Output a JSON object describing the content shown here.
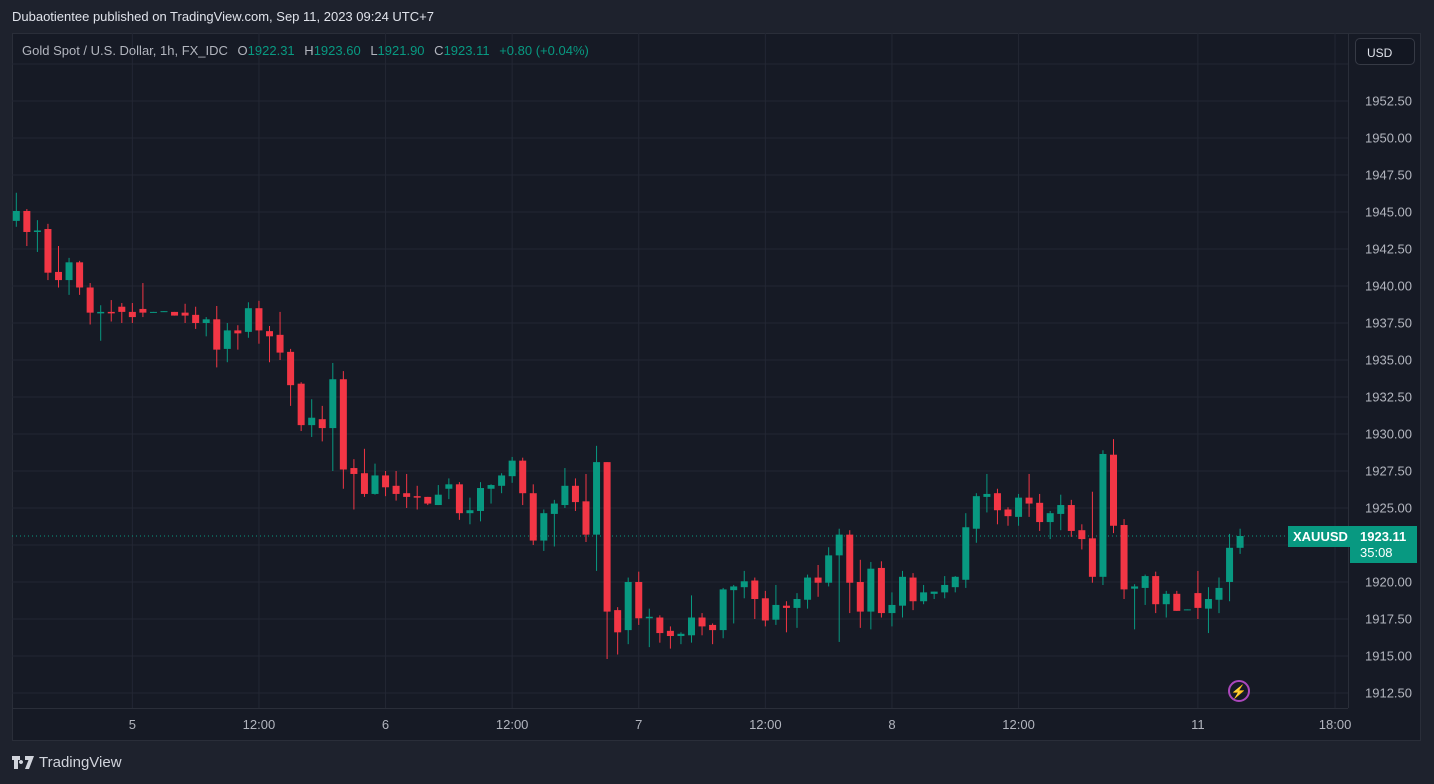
{
  "published": "Dubaotientee published on TradingView.com, Sep 11, 2023 09:24 UTC+7",
  "legend": {
    "symbol": "Gold Spot / U.S. Dollar, 1h, FX_IDC",
    "o_label": "O",
    "o": "1922.31",
    "h_label": "H",
    "h": "1923.60",
    "l_label": "L",
    "l": "1921.90",
    "c_label": "C",
    "c": "1923.11",
    "change": "+0.80 (+0.04%)"
  },
  "currency_button": "USD",
  "last_price": {
    "symbol": "XAUUSD",
    "price": "1923.11",
    "countdown": "35:08"
  },
  "footer": {
    "brand": "TradingView"
  },
  "colors": {
    "up": "#089981",
    "down": "#f23645",
    "grid": "#232734",
    "alert": "#ab47bc"
  },
  "icons": {
    "alert": "lightning-icon",
    "logo": "tradingview-logo"
  },
  "chart_data": {
    "type": "candlestick",
    "title": "Gold Spot / U.S. Dollar, 1h, FX_IDC",
    "ylabel": "USD",
    "ylim": [
      1910.2,
      1957.8
    ],
    "grid": true,
    "last_price": 1923.11,
    "y_ticks": [
      "1912.50",
      "1915.00",
      "1917.50",
      "1920.00",
      "1922.50",
      "1925.00",
      "1927.50",
      "1930.00",
      "1932.50",
      "1935.00",
      "1937.50",
      "1940.00",
      "1942.50",
      "1945.00",
      "1947.50",
      "1950.00",
      "1952.50"
    ],
    "x_ticks": [
      {
        "label": "5",
        "index": 11
      },
      {
        "label": "12:00",
        "index": 23
      },
      {
        "label": "6",
        "index": 35
      },
      {
        "label": "12:00",
        "index": 47
      },
      {
        "label": "7",
        "index": 59
      },
      {
        "label": "12:00",
        "index": 71
      },
      {
        "label": "8",
        "index": 83
      },
      {
        "label": "12:00",
        "index": 95
      },
      {
        "label": "11",
        "index": 112
      },
      {
        "label": "18:00",
        "index": 125
      }
    ],
    "ohlc_fields": [
      "open",
      "high",
      "low",
      "close"
    ],
    "candles": [
      [
        1944.4,
        1946.3,
        1944.0,
        1945.07
      ],
      [
        1945.07,
        1945.2,
        1942.7,
        1943.65
      ],
      [
        1943.65,
        1944.45,
        1942.3,
        1943.75
      ],
      [
        1943.85,
        1944.2,
        1940.4,
        1940.9
      ],
      [
        1940.95,
        1942.7,
        1939.9,
        1940.4
      ],
      [
        1940.4,
        1941.9,
        1939.4,
        1941.6
      ],
      [
        1941.6,
        1941.7,
        1939.4,
        1939.9
      ],
      [
        1939.9,
        1940.2,
        1937.4,
        1938.2
      ],
      [
        1938.15,
        1938.7,
        1936.3,
        1938.25
      ],
      [
        1938.25,
        1939.05,
        1937.6,
        1938.15
      ],
      [
        1938.6,
        1938.85,
        1937.5,
        1938.25
      ],
      [
        1938.25,
        1938.85,
        1937.5,
        1937.9
      ],
      [
        1938.45,
        1940.2,
        1937.9,
        1938.2
      ],
      [
        1938.2,
        1938.25,
        1938.2,
        1938.25
      ],
      [
        1938.25,
        1938.3,
        1938.25,
        1938.3
      ],
      [
        1938.25,
        1938.25,
        1938.0,
        1938.0
      ],
      [
        1938.2,
        1938.8,
        1937.5,
        1938.0
      ],
      [
        1938.05,
        1938.6,
        1937.1,
        1937.5
      ],
      [
        1937.5,
        1937.9,
        1936.6,
        1937.75
      ],
      [
        1937.75,
        1938.65,
        1934.5,
        1935.7
      ],
      [
        1935.75,
        1937.5,
        1934.85,
        1937.0
      ],
      [
        1937.0,
        1937.35,
        1935.7,
        1936.8
      ],
      [
        1936.9,
        1938.9,
        1936.5,
        1938.5
      ],
      [
        1938.5,
        1939.0,
        1936.1,
        1937.0
      ],
      [
        1936.95,
        1937.3,
        1934.85,
        1936.6
      ],
      [
        1936.7,
        1938.25,
        1935.0,
        1935.5
      ],
      [
        1935.55,
        1935.75,
        1931.9,
        1933.3
      ],
      [
        1933.4,
        1933.5,
        1930.2,
        1930.6
      ],
      [
        1930.6,
        1932.35,
        1929.8,
        1931.1
      ],
      [
        1931.0,
        1931.9,
        1929.5,
        1930.4
      ],
      [
        1930.4,
        1934.8,
        1927.5,
        1933.7
      ],
      [
        1933.7,
        1934.25,
        1926.3,
        1927.6
      ],
      [
        1927.7,
        1928.3,
        1924.9,
        1927.3
      ],
      [
        1927.35,
        1929.0,
        1925.75,
        1925.95
      ],
      [
        1925.95,
        1928.0,
        1925.9,
        1927.2
      ],
      [
        1927.2,
        1927.5,
        1925.8,
        1926.4
      ],
      [
        1926.5,
        1927.5,
        1925.5,
        1925.95
      ],
      [
        1926.0,
        1927.3,
        1925.0,
        1925.75
      ],
      [
        1925.8,
        1926.5,
        1924.9,
        1925.7
      ],
      [
        1925.75,
        1925.75,
        1925.2,
        1925.3
      ],
      [
        1925.2,
        1926.55,
        1925.2,
        1925.9
      ],
      [
        1926.3,
        1927.0,
        1925.6,
        1926.6
      ],
      [
        1926.6,
        1926.75,
        1924.2,
        1924.65
      ],
      [
        1924.65,
        1925.7,
        1923.9,
        1924.85
      ],
      [
        1924.8,
        1926.75,
        1924.1,
        1926.35
      ],
      [
        1926.3,
        1926.6,
        1925.3,
        1926.55
      ],
      [
        1926.5,
        1927.35,
        1926.0,
        1927.2
      ],
      [
        1927.15,
        1928.45,
        1926.7,
        1928.2
      ],
      [
        1928.2,
        1928.4,
        1925.2,
        1926.0
      ],
      [
        1926.0,
        1926.6,
        1922.5,
        1922.8
      ],
      [
        1922.8,
        1924.9,
        1922.1,
        1924.65
      ],
      [
        1924.6,
        1925.55,
        1922.4,
        1925.3
      ],
      [
        1925.2,
        1927.7,
        1925.0,
        1926.5
      ],
      [
        1926.5,
        1927.0,
        1924.8,
        1925.4
      ],
      [
        1925.45,
        1927.3,
        1922.7,
        1923.2
      ],
      [
        1923.2,
        1929.2,
        1920.75,
        1928.1
      ],
      [
        1928.1,
        1928.1,
        1914.8,
        1918.0
      ],
      [
        1918.1,
        1918.3,
        1915.1,
        1916.6
      ],
      [
        1916.75,
        1920.3,
        1915.8,
        1920.0
      ],
      [
        1920.0,
        1920.7,
        1917.1,
        1917.55
      ],
      [
        1917.55,
        1918.2,
        1915.6,
        1917.65
      ],
      [
        1917.6,
        1917.75,
        1915.9,
        1916.55
      ],
      [
        1916.7,
        1917.0,
        1915.5,
        1916.35
      ],
      [
        1916.35,
        1916.6,
        1915.8,
        1916.5
      ],
      [
        1916.4,
        1919.1,
        1915.9,
        1917.6
      ],
      [
        1917.6,
        1917.9,
        1916.4,
        1917.0
      ],
      [
        1917.1,
        1917.2,
        1915.8,
        1916.75
      ],
      [
        1916.75,
        1919.6,
        1916.2,
        1919.5
      ],
      [
        1919.45,
        1919.8,
        1917.2,
        1919.7
      ],
      [
        1919.65,
        1920.75,
        1918.9,
        1920.05
      ],
      [
        1920.1,
        1920.3,
        1917.5,
        1918.85
      ],
      [
        1918.9,
        1919.4,
        1917.0,
        1917.4
      ],
      [
        1917.45,
        1919.8,
        1917.1,
        1918.45
      ],
      [
        1918.4,
        1918.7,
        1916.6,
        1918.25
      ],
      [
        1918.25,
        1919.25,
        1916.9,
        1918.85
      ],
      [
        1918.8,
        1920.5,
        1918.2,
        1920.3
      ],
      [
        1920.3,
        1921.15,
        1919.0,
        1919.95
      ],
      [
        1919.95,
        1922.35,
        1919.7,
        1921.8
      ],
      [
        1921.8,
        1923.6,
        1915.95,
        1923.2
      ],
      [
        1923.2,
        1923.5,
        1917.9,
        1919.95
      ],
      [
        1920.0,
        1921.5,
        1916.9,
        1918.0
      ],
      [
        1918.0,
        1921.35,
        1916.8,
        1920.9
      ],
      [
        1920.95,
        1921.4,
        1917.6,
        1917.9
      ],
      [
        1917.9,
        1919.3,
        1917.0,
        1918.45
      ],
      [
        1918.4,
        1920.75,
        1917.6,
        1920.35
      ],
      [
        1920.3,
        1920.6,
        1918.1,
        1918.7
      ],
      [
        1918.7,
        1919.8,
        1918.5,
        1919.3
      ],
      [
        1919.2,
        1919.35,
        1918.85,
        1919.35
      ],
      [
        1919.3,
        1920.4,
        1918.9,
        1919.8
      ],
      [
        1919.65,
        1920.4,
        1919.3,
        1920.35
      ],
      [
        1920.15,
        1924.65,
        1919.6,
        1923.7
      ],
      [
        1923.6,
        1926.0,
        1922.65,
        1925.8
      ],
      [
        1925.75,
        1927.3,
        1924.7,
        1925.95
      ],
      [
        1926.0,
        1926.3,
        1923.9,
        1924.85
      ],
      [
        1924.9,
        1925.05,
        1923.8,
        1924.45
      ],
      [
        1924.4,
        1925.95,
        1923.8,
        1925.7
      ],
      [
        1925.7,
        1927.3,
        1924.4,
        1925.3
      ],
      [
        1925.35,
        1925.95,
        1923.45,
        1924.05
      ],
      [
        1924.05,
        1924.8,
        1922.9,
        1924.65
      ],
      [
        1924.6,
        1925.9,
        1923.5,
        1925.2
      ],
      [
        1925.2,
        1925.55,
        1923.05,
        1923.45
      ],
      [
        1923.5,
        1923.9,
        1922.2,
        1922.9
      ],
      [
        1922.95,
        1926.1,
        1919.95,
        1920.35
      ],
      [
        1920.35,
        1928.9,
        1919.8,
        1928.65
      ],
      [
        1928.6,
        1929.65,
        1923.3,
        1923.8
      ],
      [
        1923.85,
        1924.25,
        1918.85,
        1919.5
      ],
      [
        1919.55,
        1919.85,
        1916.8,
        1919.7
      ],
      [
        1919.6,
        1920.5,
        1918.45,
        1920.4
      ],
      [
        1920.4,
        1920.7,
        1917.9,
        1918.5
      ],
      [
        1918.5,
        1919.4,
        1917.6,
        1919.2
      ],
      [
        1919.2,
        1919.4,
        1918.05,
        1918.05
      ],
      [
        1918.1,
        1918.15,
        1918.1,
        1918.15
      ],
      [
        1919.25,
        1920.75,
        1917.5,
        1918.25
      ],
      [
        1918.2,
        1919.65,
        1916.55,
        1918.85
      ],
      [
        1918.8,
        1920.3,
        1917.9,
        1919.6
      ],
      [
        1920.0,
        1923.25,
        1918.7,
        1922.31
      ],
      [
        1922.31,
        1923.6,
        1921.9,
        1923.11
      ]
    ]
  }
}
